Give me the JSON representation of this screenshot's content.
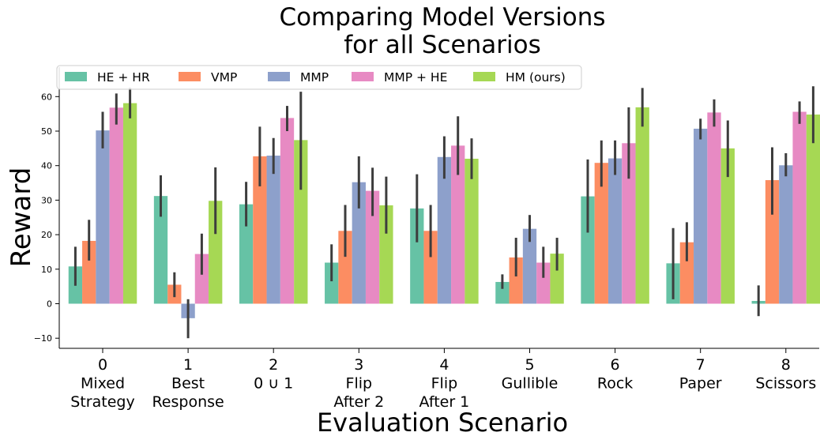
{
  "chart_data": {
    "type": "bar",
    "title": [
      "Comparing Model Versions",
      "for all Scenarios"
    ],
    "xlabel": "Evaluation Scenario",
    "ylabel": "Reward",
    "ylim": [
      -13.5,
      65
    ],
    "yticks": [
      -10,
      0,
      10,
      20,
      30,
      40,
      50,
      60
    ],
    "ytick_labels": [
      "−10",
      "0",
      "10",
      "20",
      "30",
      "40",
      "50",
      "60"
    ],
    "legend_placement": "top-left",
    "grid": false,
    "categories": [
      [
        "0",
        "Mixed",
        "Strategy"
      ],
      [
        "1",
        "Best",
        "Response"
      ],
      [
        "2",
        "0 ∪ 1"
      ],
      [
        "3",
        "Flip",
        "After 2"
      ],
      [
        "4",
        "Flip",
        "After 1"
      ],
      [
        "5",
        "Gullible"
      ],
      [
        "6",
        "Rock"
      ],
      [
        "7",
        "Paper"
      ],
      [
        "8",
        "Scissors"
      ]
    ],
    "series": [
      {
        "name": "HE + HR",
        "color": "#66c2a5",
        "values": [
          10.8,
          31.2,
          28.8,
          11.9,
          27.6,
          6.3,
          31.1,
          11.7,
          0.8
        ],
        "err_low": [
          5.2,
          25.2,
          22.4,
          6.5,
          17.8,
          4.3,
          20.6,
          1.3,
          -3.6
        ],
        "err_high": [
          16.5,
          37.2,
          35.3,
          17.2,
          37.5,
          8.5,
          41.8,
          21.9,
          5.3
        ]
      },
      {
        "name": "VMP",
        "color": "#fc8d62",
        "values": [
          18.2,
          5.5,
          42.7,
          21.1,
          21.1,
          13.4,
          40.8,
          17.8,
          35.8
        ],
        "err_low": [
          12.5,
          1.9,
          34.0,
          13.6,
          13.5,
          7.9,
          33.9,
          12.3,
          25.8
        ],
        "err_high": [
          24.3,
          9.1,
          51.3,
          28.6,
          28.6,
          19.1,
          47.3,
          23.6,
          45.3
        ]
      },
      {
        "name": "MMP",
        "color": "#8da0cb",
        "values": [
          50.2,
          -4.2,
          42.9,
          35.2,
          42.5,
          21.7,
          42.1,
          50.7,
          40.1
        ],
        "err_low": [
          45.0,
          -10.0,
          37.6,
          27.6,
          36.2,
          17.9,
          37.3,
          47.6,
          36.9
        ],
        "err_high": [
          55.6,
          1.3,
          48.0,
          42.7,
          48.5,
          25.7,
          47.3,
          53.6,
          43.6
        ]
      },
      {
        "name": "MMP + HE",
        "color": "#e78ac3",
        "values": [
          56.8,
          14.4,
          53.8,
          32.7,
          45.8,
          11.9,
          46.5,
          55.4,
          55.6
        ],
        "err_low": [
          51.9,
          8.4,
          50.0,
          25.4,
          37.3,
          7.5,
          36.2,
          51.3,
          52.1
        ],
        "err_high": [
          60.9,
          20.3,
          57.3,
          39.4,
          54.3,
          16.5,
          56.9,
          59.2,
          58.6
        ]
      },
      {
        "name": "HM (ours)",
        "color": "#a6d854",
        "values": [
          58.1,
          29.8,
          47.4,
          28.5,
          42.0,
          14.5,
          56.9,
          45.0,
          54.8
        ],
        "err_low": [
          53.7,
          20.2,
          33.0,
          20.3,
          36.1,
          9.6,
          51.3,
          36.7,
          46.5
        ],
        "err_high": [
          62.6,
          39.5,
          61.4,
          36.8,
          47.9,
          19.1,
          62.5,
          53.1,
          63.0
        ]
      }
    ]
  }
}
